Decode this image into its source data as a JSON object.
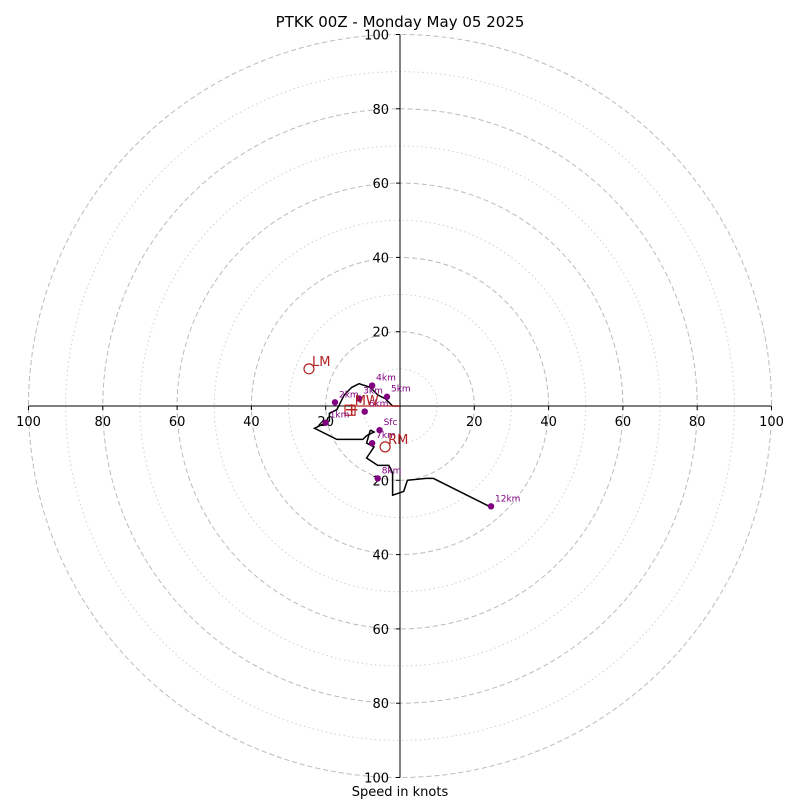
{
  "chart_data": {
    "type": "hodograph",
    "title": "PTKK 00Z - Monday May 05 2025",
    "xlabel": "Speed in knots",
    "ylabel": "",
    "xlim": [
      -100,
      100
    ],
    "ylim": [
      -100,
      100
    ],
    "tick_labels_x": [
      "100",
      "80",
      "60",
      "40",
      "20",
      "20",
      "40",
      "60",
      "80",
      "100"
    ],
    "tick_labels_y": [
      "100",
      "80",
      "60",
      "40",
      "20",
      "20",
      "40",
      "60",
      "80",
      "100"
    ],
    "ticks_x": [
      -100,
      -80,
      -60,
      -40,
      -20,
      20,
      40,
      60,
      80,
      100
    ],
    "ticks_y": [
      100,
      80,
      60,
      40,
      20,
      -20,
      -40,
      -60,
      -80,
      -100
    ],
    "rings_major": [
      20,
      40,
      60,
      80,
      100
    ],
    "rings_minor": [
      10,
      30,
      50,
      70,
      90
    ],
    "grid": true,
    "profile": [
      [
        -8,
        -6.5
      ],
      [
        -9,
        -10
      ],
      [
        -7,
        -11
      ],
      [
        -9,
        -14
      ],
      [
        -6,
        -16
      ],
      [
        -3,
        -16
      ],
      [
        -2,
        -18
      ],
      [
        -2,
        -19
      ],
      [
        -2,
        -24
      ],
      [
        1,
        -23
      ],
      [
        2,
        -20
      ],
      [
        7,
        -19.5
      ],
      [
        9,
        -19.5
      ],
      [
        24,
        -27
      ]
    ],
    "profile_low": [
      [
        -8,
        -6.5
      ],
      [
        -7,
        -7
      ],
      [
        -9,
        -8
      ],
      [
        -10,
        -9
      ],
      [
        -17,
        -9
      ],
      [
        -23,
        -6
      ],
      [
        -19,
        -4
      ],
      [
        -19,
        -2
      ],
      [
        -17,
        -1
      ],
      [
        -15,
        3
      ],
      [
        -13,
        5
      ],
      [
        -11,
        6
      ],
      [
        -8,
        5
      ],
      [
        -6,
        3
      ],
      [
        -4,
        2
      ],
      [
        -3,
        1
      ],
      [
        -2,
        0
      ],
      [
        -1,
        0
      ],
      [
        0,
        0
      ]
    ],
    "height_markers": [
      {
        "label": "Sfc",
        "u": -5.5,
        "v": -6.5
      },
      {
        "label": "1km",
        "u": -20,
        "v": -4.5
      },
      {
        "label": "2km",
        "u": -17.5,
        "v": 1
      },
      {
        "label": "3km",
        "u": -11,
        "v": 2
      },
      {
        "label": "4km",
        "u": -7.5,
        "v": 5.5
      },
      {
        "label": "5km",
        "u": -3.5,
        "v": 2.5
      },
      {
        "label": "6km",
        "u": -9.5,
        "v": -1.5
      },
      {
        "label": "7km",
        "u": -7.5,
        "v": -10
      },
      {
        "label": "8km",
        "u": -6,
        "v": -19.5
      },
      {
        "label": "12km",
        "u": 24.5,
        "v": -27
      }
    ],
    "motion_markers": [
      {
        "label": "LM",
        "u": -24.5,
        "v": 10
      },
      {
        "label": "RM",
        "u": -4,
        "v": -11
      },
      {
        "label": "MW",
        "u": -13,
        "v": -0.5
      }
    ],
    "mean_marker_label": "",
    "colors": {
      "profile": "#000000",
      "height": "#800080",
      "motion": "#b22222",
      "grid": "#bbbbbb"
    }
  }
}
